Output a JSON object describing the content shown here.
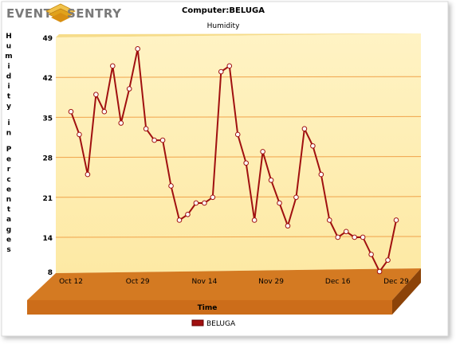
{
  "brand": {
    "name_left": "EVENT",
    "name_right": "SENTRY",
    "colors": {
      "gray": "#7a7a7a",
      "gold": "#e0a21c"
    }
  },
  "colors": {
    "plot_bg": "#fde9a4",
    "plot_bg_top": "#fff3c4",
    "base_front": "#cc6d1a",
    "base_top": "#d47a22",
    "base_side": "#8c4308",
    "gridline": "#f0a24a",
    "series_line": "#a01010",
    "marker_fill": "#ffffff"
  },
  "chart_data": {
    "type": "line",
    "title": "Computer:BELUGA",
    "subtitle": "Humidity",
    "xlabel": "Time",
    "ylabel": "Humidity in Percentages",
    "ylim": [
      8,
      49
    ],
    "yticks": [
      8,
      14,
      21,
      28,
      35,
      42,
      49
    ],
    "xtick_labels": [
      "Oct 12",
      "Oct 29",
      "Nov 14",
      "Nov 29",
      "Dec 16",
      "Dec 29"
    ],
    "xtick_index": [
      0,
      8,
      16,
      24,
      32,
      39
    ],
    "legend_position": "bottom-center",
    "grid": true,
    "series": [
      {
        "name": "BELUGA",
        "color": "#a01010",
        "values": [
          36,
          32,
          25,
          39,
          36,
          44,
          34,
          40,
          47,
          33,
          31,
          31,
          23,
          17,
          18,
          20,
          20,
          21,
          43,
          44,
          32,
          27,
          17,
          29,
          24,
          20,
          16,
          21,
          33,
          30,
          25,
          17,
          14,
          15,
          14,
          14,
          11,
          8,
          10,
          17
        ]
      }
    ]
  }
}
